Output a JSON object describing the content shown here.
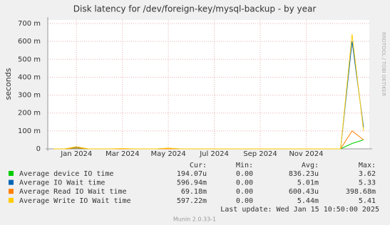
{
  "chart_data": {
    "type": "line",
    "title": "Disk latency for /dev/foreign-key/mysql-backup - by year",
    "y_label": "seconds",
    "side_text": "RRDTOOL / TOBI OETIKER",
    "categories": [
      null,
      null,
      "Jan 2024",
      null,
      null,
      null,
      "Mar 2024",
      null,
      null,
      null,
      "May 2024",
      null,
      null,
      null,
      "Jul 2024",
      null,
      null,
      null,
      "Sep 2024",
      null,
      null,
      null,
      "Nov 2024",
      null,
      null,
      null,
      null,
      null
    ],
    "series": [
      {
        "name": "Average device IO time",
        "color": "#00cc00",
        "values": [
          0,
          0,
          0.004,
          0,
          0,
          0,
          0,
          0,
          0,
          0,
          0,
          0,
          0,
          0,
          0,
          0,
          0,
          0,
          0,
          0,
          0,
          0,
          0,
          0,
          0,
          0,
          0.03,
          0.05
        ]
      },
      {
        "name": "Average IO Wait time",
        "color": "#0066b3",
        "values": [
          0,
          0,
          0.01,
          0,
          0,
          0,
          0,
          0,
          0,
          0,
          0.003,
          0,
          0,
          0,
          0,
          0,
          0,
          0,
          0,
          0,
          0,
          0,
          0,
          0,
          0,
          0,
          0.6,
          0.12
        ]
      },
      {
        "name": "Average Read IO Wait time",
        "color": "#ff8000",
        "values": [
          0,
          0,
          0.005,
          0,
          0,
          0,
          0,
          0,
          0,
          0,
          0,
          0,
          0,
          0,
          0,
          0,
          0,
          0,
          0,
          0,
          0,
          0,
          0,
          0,
          0,
          0,
          0.1,
          0.05
        ]
      },
      {
        "name": "Average Write IO Wait time",
        "color": "#ffcc00",
        "values": [
          0,
          0,
          0.012,
          0,
          0,
          0,
          0.002,
          0,
          0,
          0,
          0.004,
          0,
          0,
          0,
          0,
          0,
          0,
          0,
          0,
          0,
          0,
          0,
          0,
          0,
          0,
          0,
          0.64,
          0.1
        ]
      }
    ],
    "ylim": [
      0,
      0.72
    ],
    "yticks": [
      0,
      {
        "value": 0.1,
        "label": "100 m"
      },
      {
        "value": 0.2,
        "label": "200 m"
      },
      {
        "value": 0.3,
        "label": "300 m"
      },
      {
        "value": 0.4,
        "label": "400 m"
      },
      {
        "value": 0.5,
        "label": "500 m"
      },
      {
        "value": 0.6,
        "label": "600 m"
      },
      {
        "value": 0.7,
        "label": "700 m"
      }
    ],
    "grid": true,
    "legend_table": {
      "header": [
        "Cur:",
        "Min:",
        "Avg:",
        "Max:"
      ],
      "rows": [
        [
          "194.07u",
          "0.00",
          "836.23u",
          "3.62"
        ],
        [
          "596.94m",
          "0.00",
          "5.01m",
          "5.33"
        ],
        [
          "69.18m",
          "0.00",
          "600.43u",
          "398.68m"
        ],
        [
          "597.22m",
          "0.00",
          "5.44m",
          "5.41"
        ]
      ]
    },
    "last_update": "Last update: Wed Jan 15 10:50:00 2025",
    "footer": "Munin 2.0.33-1"
  }
}
